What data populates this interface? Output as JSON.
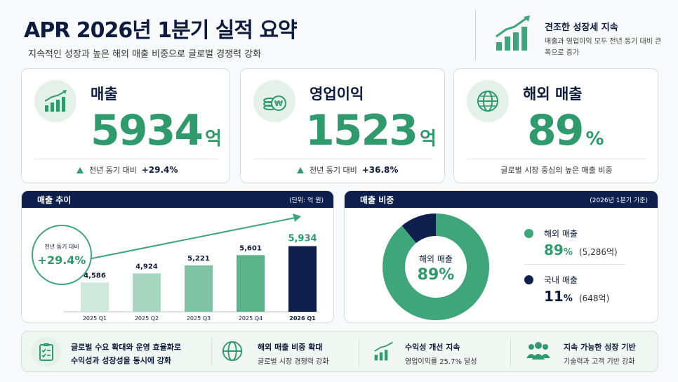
{
  "header": {
    "title": "APR 2026년 1분기 실적 요약",
    "subtitle": "지속적인 성장과 높은 해외 매출 비중으로 글로벌 경쟁력 강화",
    "highlight_title": "견조한 성장세 지속",
    "highlight_desc": "매출과 영업이익 모두 전년 동기 대비 큰 폭으로 증가"
  },
  "kpis": [
    {
      "label": "매출",
      "value": "5934",
      "unit": "억",
      "note_prefix": "전년 동기 대비",
      "note_value": "+29.4%"
    },
    {
      "label": "영업이익",
      "value": "1523",
      "unit": "억",
      "note_prefix": "전년 동기 대비",
      "note_value": "+36.8%"
    },
    {
      "label": "해외 매출",
      "value": "89",
      "unit": "%",
      "note": "글로벌 시장 중심의 높은 매출 비중"
    }
  ],
  "trend": {
    "title": "매출 추이",
    "unit_note": "(단위: 억 원)",
    "badge_label": "전년 동기 대비",
    "badge_value": "+29.4%"
  },
  "mix": {
    "title": "매출 비중",
    "period_note": "(2026년 1분기 기준)",
    "center_label": "해외 매출",
    "center_value": "89%",
    "legend": [
      {
        "label": "해외 매출",
        "pct": "89",
        "pct_unit": "%",
        "amount": "(5,286억)",
        "color": "#3fa57a"
      },
      {
        "label": "국내 매출",
        "pct": "11",
        "pct_unit": "%",
        "amount": "(648억)",
        "color": "#0e1f4d"
      }
    ]
  },
  "chart_data": [
    {
      "type": "bar",
      "title": "매출 추이",
      "categories": [
        "2025 Q1",
        "2025 Q2",
        "2025 Q3",
        "2025 Q4",
        "2026 Q1"
      ],
      "values": [
        4586,
        4924,
        5221,
        5601,
        5934
      ],
      "value_labels": [
        "4,586",
        "4,924",
        "5,221",
        "5,601",
        "5,934"
      ],
      "colors": [
        "#cfe8dc",
        "#a9d6c0",
        "#7fc3a4",
        "#5bb38a",
        "#0e1f4d"
      ],
      "ylim": [
        3500,
        6000
      ]
    },
    {
      "type": "pie",
      "title": "매출 비중",
      "categories": [
        "해외 매출",
        "국내 매출"
      ],
      "values": [
        89,
        11
      ],
      "colors": [
        "#3fa57a",
        "#0e1f4d"
      ]
    }
  ],
  "bottom": [
    {
      "title_line1": "글로벌 수요 확대와 운영 효율화로",
      "title_line2": "수익성과 성장성을 동시에 강화",
      "icon": "clipboard-checklist-icon"
    },
    {
      "title": "해외 매출 비중 확대",
      "desc": "글로벌 시장 경쟁력 강화",
      "icon": "globe-icon"
    },
    {
      "title": "수익성 개선 지속",
      "desc": "영업이익률 25.7% 달성",
      "icon": "growth-chart-icon"
    },
    {
      "title": "지속 가능한 성장 기반",
      "desc": "기술력과 고객 기반 강화",
      "icon": "people-group-icon"
    }
  ]
}
